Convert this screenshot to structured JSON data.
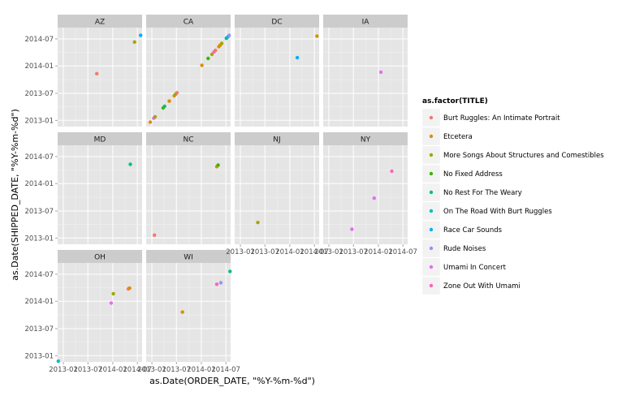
{
  "chart_data": {
    "type": "scatter",
    "xlabel": "as.Date(ORDER_DATE, \"%Y-%m-%d\")",
    "ylabel": "as.Date(SHIPPED_DATE, \"%Y-%m-%d\")",
    "x_ticks": [
      "2013-01",
      "2013-07",
      "2014-01",
      "2014-07"
    ],
    "y_ticks": [
      "2013-01",
      "2013-07",
      "2014-01",
      "2014-07"
    ],
    "xlim": [
      "2012-11-20",
      "2014-08-05"
    ],
    "ylim": [
      "2012-11-20",
      "2014-09-15"
    ],
    "grid": true,
    "legend": {
      "title": "as.factor(TITLE)",
      "position": "right",
      "items": [
        {
          "name": "Burt Ruggles: An Intimate Portrait",
          "color": "#F8766D"
        },
        {
          "name": "Etcetera",
          "color": "#D89000"
        },
        {
          "name": "More Songs About Structures and Comestibles",
          "color": "#A3A500"
        },
        {
          "name": "No Fixed Address",
          "color": "#39B600"
        },
        {
          "name": "No Rest For The Weary",
          "color": "#00BF7D"
        },
        {
          "name": "On The Road With Burt Ruggles",
          "color": "#00BFC4"
        },
        {
          "name": "Race Car Sounds",
          "color": "#00B0F6"
        },
        {
          "name": "Rude Noises",
          "color": "#9590FF"
        },
        {
          "name": "Umami In Concert",
          "color": "#E76BF3"
        },
        {
          "name": "Zone Out With Umami",
          "color": "#FF62BC"
        }
      ]
    },
    "panels": [
      {
        "state": "AZ",
        "points": [
          {
            "x": "2013-09-05",
            "y": "2013-11-10",
            "series": "Burt Ruggles: An Intimate Portrait"
          },
          {
            "x": "2014-06-10",
            "y": "2014-06-10",
            "series": "More Songs About Structures and Comestibles"
          },
          {
            "x": "2014-07-25",
            "y": "2014-07-25",
            "series": "Race Car Sounds"
          }
        ]
      },
      {
        "state": "CA",
        "points": [
          {
            "x": "2012-12-20",
            "y": "2012-12-20",
            "series": "Etcetera"
          },
          {
            "x": "2013-01-15",
            "y": "2013-01-15",
            "series": "Umami In Concert"
          },
          {
            "x": "2013-01-25",
            "y": "2013-01-25",
            "series": "More Songs About Structures and Comestibles"
          },
          {
            "x": "2013-03-25",
            "y": "2013-03-25",
            "series": "No Fixed Address"
          },
          {
            "x": "2013-04-05",
            "y": "2013-04-05",
            "series": "No Rest For The Weary"
          },
          {
            "x": "2013-05-10",
            "y": "2013-05-10",
            "series": "Etcetera"
          },
          {
            "x": "2013-06-15",
            "y": "2013-06-15",
            "series": "Etcetera"
          },
          {
            "x": "2013-06-25",
            "y": "2013-06-25",
            "series": "More Songs About Structures and Comestibles"
          },
          {
            "x": "2013-07-05",
            "y": "2013-07-05",
            "series": "Burt Ruggles: An Intimate Portrait"
          },
          {
            "x": "2014-01-05",
            "y": "2014-01-05",
            "series": "Etcetera"
          },
          {
            "x": "2014-02-20",
            "y": "2014-02-20",
            "series": "No Fixed Address"
          },
          {
            "x": "2014-03-20",
            "y": "2014-03-20",
            "series": "More Songs About Structures and Comestibles"
          },
          {
            "x": "2014-04-05",
            "y": "2014-04-05",
            "series": "Zone Out With Umami"
          },
          {
            "x": "2014-04-15",
            "y": "2014-04-15",
            "series": "Burt Ruggles: An Intimate Portrait"
          },
          {
            "x": "2014-05-10",
            "y": "2014-05-10",
            "series": "Etcetera"
          },
          {
            "x": "2014-05-20",
            "y": "2014-05-20",
            "series": "Etcetera"
          },
          {
            "x": "2014-06-01",
            "y": "2014-06-01",
            "series": "More Songs About Structures and Comestibles"
          },
          {
            "x": "2014-07-05",
            "y": "2014-07-05",
            "series": "No Rest For The Weary"
          },
          {
            "x": "2014-07-15",
            "y": "2014-07-15",
            "series": "Race Car Sounds"
          },
          {
            "x": "2014-07-25",
            "y": "2014-07-25",
            "series": "Rude Noises"
          }
        ]
      },
      {
        "state": "DC",
        "points": [
          {
            "x": "2014-02-25",
            "y": "2014-02-25",
            "series": "Race Car Sounds"
          },
          {
            "x": "2014-07-20",
            "y": "2014-07-20",
            "series": "Etcetera"
          }
        ]
      },
      {
        "state": "IA",
        "points": [
          {
            "x": "2014-01-20",
            "y": "2013-11-20",
            "series": "Umami In Concert"
          }
        ]
      },
      {
        "state": "MD",
        "points": [
          {
            "x": "2014-05-10",
            "y": "2014-05-10",
            "series": "No Rest For The Weary"
          }
        ]
      },
      {
        "state": "NC",
        "points": [
          {
            "x": "2013-01-20",
            "y": "2013-01-20",
            "series": "Burt Ruggles: An Intimate Portrait"
          },
          {
            "x": "2014-04-25",
            "y": "2014-04-25",
            "series": "Etcetera"
          },
          {
            "x": "2014-05-05",
            "y": "2014-05-05",
            "series": "No Fixed Address"
          }
        ]
      },
      {
        "state": "NJ",
        "points": [
          {
            "x": "2013-05-10",
            "y": "2013-04-15",
            "series": "More Songs About Structures and Comestibles"
          }
        ]
      },
      {
        "state": "NY",
        "points": [
          {
            "x": "2013-06-20",
            "y": "2013-03-01",
            "series": "Umami In Concert"
          },
          {
            "x": "2013-12-01",
            "y": "2013-09-25",
            "series": "Umami In Concert"
          },
          {
            "x": "2014-04-10",
            "y": "2014-03-25",
            "series": "Zone Out With Umami"
          }
        ]
      },
      {
        "state": "OH",
        "points": [
          {
            "x": "2012-11-25",
            "y": "2012-11-25",
            "series": "On The Road With Burt Ruggles"
          },
          {
            "x": "2013-12-20",
            "y": "2013-12-20",
            "series": "Umami In Concert"
          },
          {
            "x": "2014-01-05",
            "y": "2014-02-20",
            "series": "More Songs About Structures and Comestibles"
          },
          {
            "x": "2014-04-25",
            "y": "2014-03-25",
            "series": "Burt Ruggles: An Intimate Portrait"
          },
          {
            "x": "2014-05-05",
            "y": "2014-03-30",
            "series": "Etcetera"
          }
        ]
      },
      {
        "state": "WI",
        "points": [
          {
            "x": "2013-08-15",
            "y": "2013-10-20",
            "series": "Etcetera"
          },
          {
            "x": "2014-04-25",
            "y": "2014-04-25",
            "series": "Zone Out With Umami"
          },
          {
            "x": "2014-05-25",
            "y": "2014-05-05",
            "series": "Rude Noises"
          },
          {
            "x": "2014-08-01",
            "y": "2014-07-20",
            "series": "No Rest For The Weary"
          }
        ]
      }
    ]
  }
}
